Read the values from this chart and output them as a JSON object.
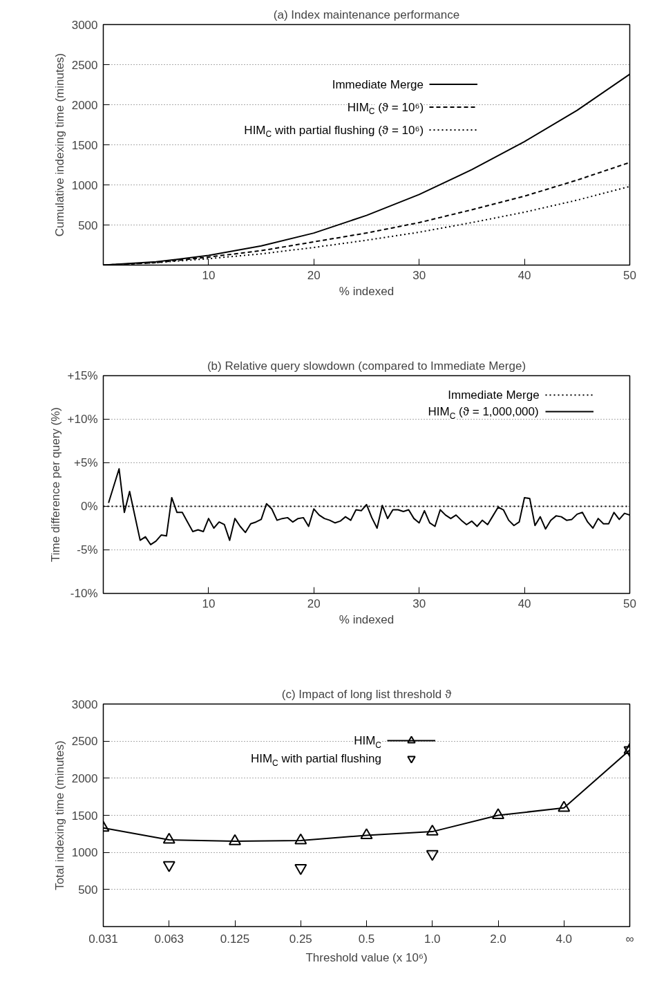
{
  "chart_data": [
    {
      "type": "line",
      "title": "(a) Index maintenance performance",
      "xlabel": "% indexed",
      "ylabel": "Cumulative indexing time (minutes)",
      "x": [
        0,
        5,
        10,
        15,
        20,
        25,
        30,
        35,
        40,
        45,
        50
      ],
      "series": [
        {
          "name": "Immediate Merge",
          "color": "#000000",
          "line_style": "solid",
          "values": [
            0,
            40,
            120,
            240,
            400,
            620,
            880,
            1190,
            1540,
            1930,
            2380
          ]
        },
        {
          "name": "HIM$_{C}$ (ϑ = 10⁶)",
          "color": "#000000",
          "line_style": "dashed",
          "values": [
            0,
            30,
            100,
            180,
            290,
            400,
            530,
            690,
            860,
            1060,
            1280
          ]
        },
        {
          "name": "HIM$_{C}$ with partial flushing (ϑ = 10⁶)",
          "color": "#000000",
          "line_style": "dotted",
          "values": [
            0,
            30,
            80,
            140,
            220,
            310,
            410,
            530,
            660,
            810,
            980
          ]
        }
      ],
      "xlim": [
        0,
        50
      ],
      "ylim": [
        0,
        3000
      ],
      "xticks": [
        10,
        20,
        30,
        40,
        50
      ],
      "yticks": [
        500,
        1000,
        1500,
        2000,
        2500,
        3000
      ],
      "grid": "y",
      "legend": "top right"
    },
    {
      "type": "line",
      "title": "(b) Relative query slowdown (compared to Immediate Merge)",
      "xlabel": "% indexed",
      "ylabel": "Time difference per query (%)",
      "series": [
        {
          "name": "Immediate Merge",
          "color": "#000000",
          "line_style": "dotted",
          "x": [
            0,
            50
          ],
          "values": [
            0,
            0
          ]
        },
        {
          "name": "HIM$_{C}$ (ϑ = 1,000,000)",
          "color": "#000000",
          "line_style": "solid",
          "x": [
            0.5,
            1.5,
            2,
            2.5,
            3.5,
            4,
            4.5,
            5,
            5.5,
            6,
            6.5,
            7,
            7.5,
            8,
            8.5,
            9,
            9.5,
            10,
            10.5,
            11,
            11.5,
            12,
            12.5,
            13,
            13.5,
            14,
            14.5,
            15,
            15.5,
            16,
            16.5,
            17,
            17.5,
            18,
            18.5,
            19,
            19.5,
            20,
            20.5,
            21,
            21.5,
            22,
            22.5,
            23,
            23.5,
            24,
            24.5,
            25,
            25.5,
            26,
            26.5,
            27,
            27.5,
            28,
            28.5,
            29,
            29.5,
            30,
            30.5,
            31,
            31.5,
            32,
            32.5,
            33,
            33.5,
            34,
            34.5,
            35,
            35.5,
            36,
            36.5,
            37,
            37.5,
            38,
            38.5,
            39,
            39.5,
            40,
            40.5,
            41,
            41.5,
            42,
            42.5,
            43,
            43.5,
            44,
            44.5,
            45,
            45.5,
            46,
            46.5,
            47,
            47.5,
            48,
            48.5,
            49,
            49.5,
            50
          ],
          "values": [
            0.4,
            4.3,
            -0.7,
            1.7,
            -3.9,
            -3.5,
            -4.4,
            -4.0,
            -3.3,
            -3.4,
            1.0,
            -0.7,
            -0.7,
            -1.8,
            -2.9,
            -2.7,
            -2.9,
            -1.4,
            -2.5,
            -1.8,
            -2.1,
            -3.9,
            -1.4,
            -2.3,
            -3.0,
            -2.0,
            -1.8,
            -1.5,
            0.3,
            -0.3,
            -1.6,
            -1.4,
            -1.3,
            -1.8,
            -1.4,
            -1.3,
            -2.3,
            -0.3,
            -1.0,
            -1.4,
            -1.6,
            -1.9,
            -1.7,
            -1.2,
            -1.6,
            -0.4,
            -0.5,
            0.2,
            -1.3,
            -2.5,
            0.1,
            -1.4,
            -0.4,
            -0.4,
            -0.6,
            -0.4,
            -1.4,
            -1.9,
            -0.5,
            -1.9,
            -2.3,
            -0.4,
            -1.0,
            -1.4,
            -1.0,
            -1.6,
            -2.1,
            -1.7,
            -2.3,
            -1.6,
            -2.1,
            -1.1,
            -0.1,
            -0.4,
            -1.6,
            -2.2,
            -1.8,
            1.0,
            0.9,
            -2.2,
            -1.2,
            -2.6,
            -1.6,
            -1.1,
            -1.2,
            -1.6,
            -1.5,
            -0.9,
            -0.7,
            -1.8,
            -2.5,
            -1.4,
            -2.0,
            -2.0,
            -0.7,
            -1.5,
            -0.8,
            -1.0
          ]
        }
      ],
      "xlim": [
        0,
        50
      ],
      "ylim": [
        -10,
        15
      ],
      "xticks": [
        10,
        20,
        30,
        40,
        50
      ],
      "yticks": [
        {
          "value": -10,
          "label": "-10%"
        },
        {
          "value": -5,
          "label": "-5%"
        },
        {
          "value": 0,
          "label": "0%"
        },
        {
          "value": 5,
          "label": "+5%"
        },
        {
          "value": 10,
          "label": "+10%"
        },
        {
          "value": 15,
          "label": "+15%"
        }
      ],
      "grid": "y",
      "legend": "top right"
    },
    {
      "type": "line",
      "title": "(c) Impact of long list threshold ϑ",
      "xlabel": "Threshold value (x 10⁶)",
      "ylabel": "Total indexing time (minutes)",
      "categories": [
        "0.031",
        "0.063",
        "0.125",
        "0.25",
        "0.5",
        "1.0",
        "2.0",
        "4.0",
        "∞"
      ],
      "series": [
        {
          "name": "HIM$_{C}$",
          "color": "#000000",
          "type": "line",
          "line_style": "solid",
          "marker": "triangle",
          "values": [
            1330,
            1170,
            1150,
            1160,
            1230,
            1280,
            1500,
            1600,
            2380
          ]
        },
        {
          "name": "HIM$_{C}$ with partial flushing",
          "color": "#000000",
          "type": "scatter",
          "values": [
            null,
            830,
            null,
            790,
            null,
            980,
            null,
            null,
            2380
          ]
        }
      ],
      "ylim": [
        0,
        3000
      ],
      "yticks": [
        500,
        1000,
        1500,
        2000,
        2500,
        3000
      ],
      "grid": "y",
      "legend": "top right"
    }
  ]
}
